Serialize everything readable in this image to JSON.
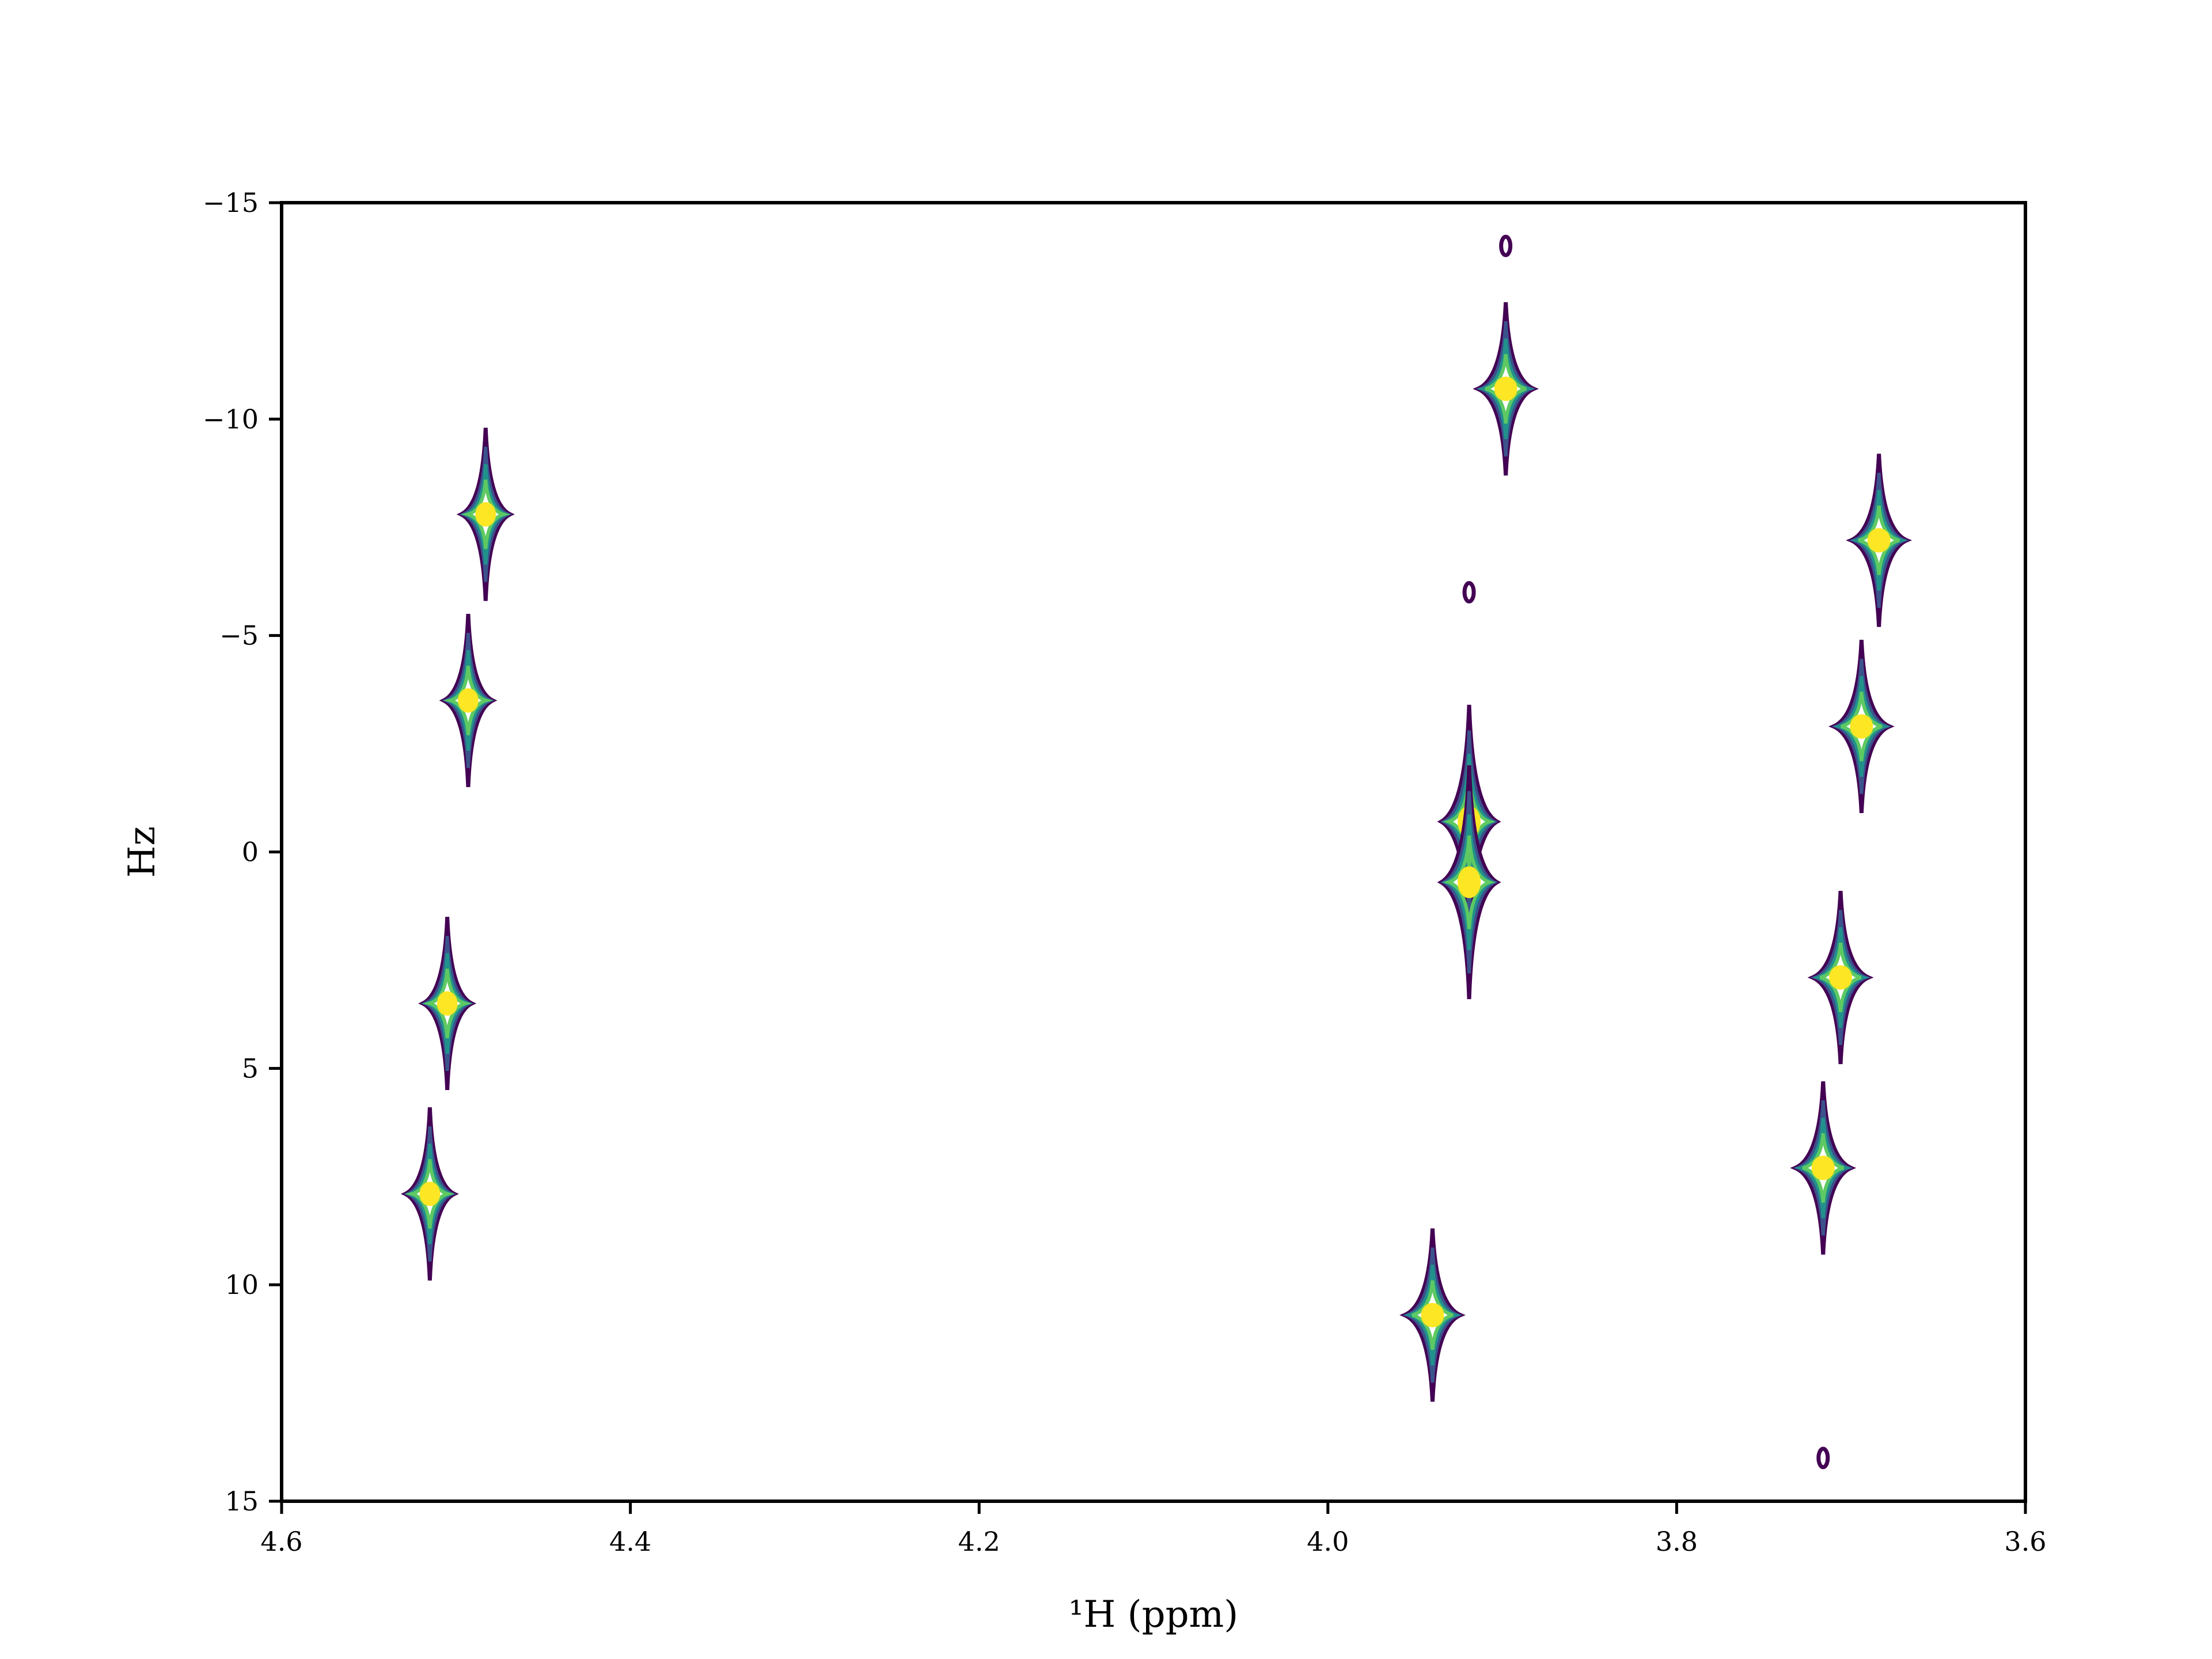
{
  "chart_data": {
    "type": "contour",
    "title": "",
    "xlabel": "¹H (ppm)",
    "ylabel": "Hz",
    "xlim": [
      4.6,
      3.6
    ],
    "ylim": [
      -15,
      15
    ],
    "x_ticks": [
      "4.6",
      "4.4",
      "4.2",
      "4.0",
      "3.8",
      "3.6"
    ],
    "x_tick_values": [
      4.6,
      4.4,
      4.2,
      4.0,
      3.8,
      3.6
    ],
    "y_ticks": [
      "−15",
      "−10",
      "−5",
      "0",
      "5",
      "10",
      "15"
    ],
    "y_tick_values": [
      -15,
      -10,
      -5,
      0,
      5,
      10,
      15
    ],
    "colormap": [
      "#440154",
      "#3b528b",
      "#21918c",
      "#5ec962",
      "#fde725"
    ],
    "peaks": [
      {
        "x": 4.483,
        "y": -7.8,
        "spread": 2.0,
        "wing": 0.014
      },
      {
        "x": 4.493,
        "y": -3.5,
        "spread": 2.0,
        "wing": 0.014
      },
      {
        "x": 4.505,
        "y": 3.5,
        "spread": 2.0,
        "wing": 0.014
      },
      {
        "x": 4.515,
        "y": 7.9,
        "spread": 2.0,
        "wing": 0.014
      },
      {
        "x": 3.898,
        "y": -10.7,
        "spread": 2.0,
        "wing": 0.016
      },
      {
        "x": 3.919,
        "y": -0.7,
        "spread": 2.7,
        "wing": 0.016
      },
      {
        "x": 3.919,
        "y": 0.7,
        "spread": 2.7,
        "wing": 0.016
      },
      {
        "x": 3.94,
        "y": 10.7,
        "spread": 2.0,
        "wing": 0.016
      },
      {
        "x": 3.684,
        "y": -7.2,
        "spread": 2.0,
        "wing": 0.016
      },
      {
        "x": 3.694,
        "y": -2.9,
        "spread": 2.0,
        "wing": 0.016
      },
      {
        "x": 3.706,
        "y": 2.9,
        "spread": 2.0,
        "wing": 0.016
      },
      {
        "x": 3.716,
        "y": 7.3,
        "spread": 2.0,
        "wing": 0.016
      }
    ],
    "minor_spots": [
      {
        "x": 3.898,
        "y": -14.0
      },
      {
        "x": 3.919,
        "y": -6.0
      },
      {
        "x": 3.716,
        "y": 14.0
      }
    ]
  }
}
